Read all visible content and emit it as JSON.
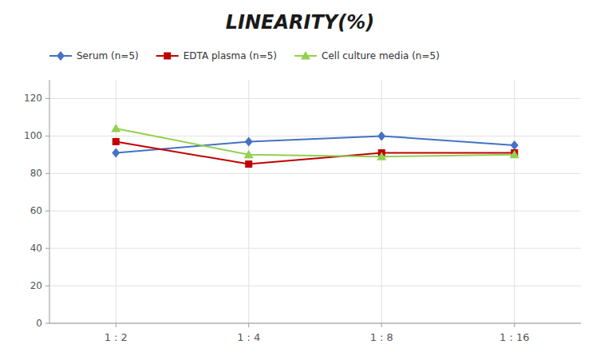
{
  "chart_data": {
    "type": "line",
    "title": "LINEARITY(%)",
    "categories": [
      "1 : 2",
      "1 : 4",
      "1 : 8",
      "1 : 16"
    ],
    "series": [
      {
        "name": "Serum (n=5)",
        "color": "#4472C4",
        "marker": "diamond",
        "values": [
          91,
          97,
          100,
          95
        ]
      },
      {
        "name": "EDTA plasma (n=5)",
        "color": "#C00000",
        "marker": "square",
        "values": [
          97,
          85,
          91,
          91
        ]
      },
      {
        "name": "Cell culture media (n=5)",
        "color": "#92D050",
        "marker": "triangle",
        "values": [
          104,
          90,
          89,
          90
        ]
      }
    ],
    "ylim": [
      0,
      130
    ],
    "yticks": [
      0,
      20,
      40,
      60,
      80,
      100,
      120
    ],
    "grid": true,
    "legend": "top"
  }
}
